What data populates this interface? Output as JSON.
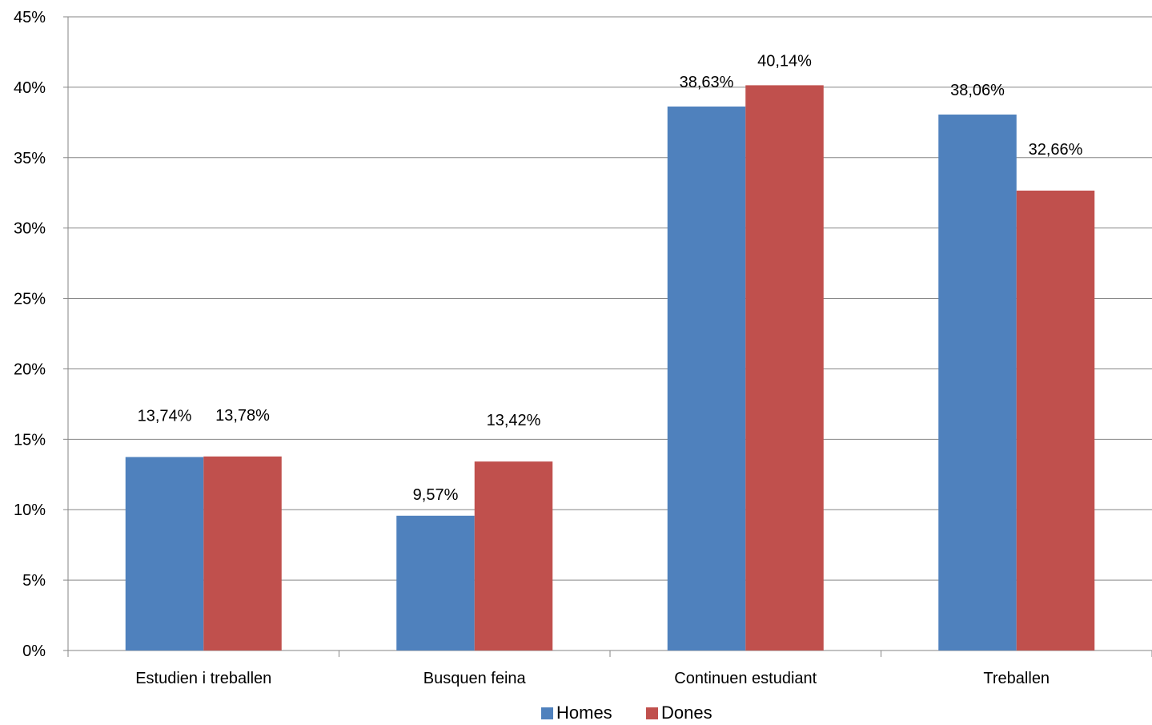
{
  "chart_data": {
    "type": "bar",
    "categories": [
      "Estudien i treballen",
      "Busquen feina",
      "Continuen estudiant",
      "Treballen"
    ],
    "series": [
      {
        "name": "Homes",
        "color": "#4F81BD",
        "values": [
          13.74,
          9.57,
          38.63,
          38.06
        ],
        "labels": [
          "13,74%",
          "9,57%",
          "38,63%",
          "38,06%"
        ]
      },
      {
        "name": "Dones",
        "color": "#C0504D",
        "values": [
          13.78,
          13.42,
          40.14,
          32.66
        ],
        "labels": [
          "13,78%",
          "13,42%",
          "40,14%",
          "32,66%"
        ]
      }
    ],
    "yticks": [
      "0%",
      "5%",
      "10%",
      "15%",
      "20%",
      "25%",
      "30%",
      "35%",
      "40%",
      "45%"
    ],
    "ylim": [
      0,
      45
    ],
    "grid": true,
    "legend_position": "bottom",
    "title": "",
    "xlabel": "",
    "ylabel": ""
  }
}
